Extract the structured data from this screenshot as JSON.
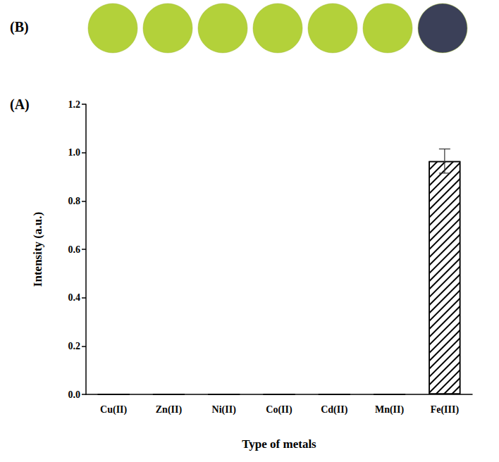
{
  "chart_data": {
    "type": "bar",
    "annotations": [
      "(A)"
    ],
    "x_label": "Type of metals",
    "y_label": "Intensity (a.u.)",
    "categories": [
      "Cu(II)",
      "Zn(II)",
      "Ni(II)",
      "Co(II)",
      "Cd(II)",
      "Mn(II)",
      "Fe(III)"
    ],
    "values": [
      0,
      0,
      0,
      0,
      0,
      0,
      0.965
    ],
    "errors": [
      0,
      0,
      0,
      0,
      0,
      0,
      0.05
    ],
    "color": "#ffffff",
    "ylim": [
      0,
      1.2
    ],
    "yticks": [
      {
        "value": 0,
        "label": "0.0"
      },
      0.2,
      0.4,
      0.6,
      0.8,
      {
        "value": 1,
        "label": "1.0"
      },
      1.2
    ],
    "grid": false
  },
  "photo_row": {
    "annotations": [
      "(B)"
    ],
    "colors": [
      "#b3d13a",
      "#b3d13a",
      "#b3d13a",
      "#b3d13a",
      "#b3d13a",
      "#b3d13a",
      "#3b4058"
    ]
  }
}
